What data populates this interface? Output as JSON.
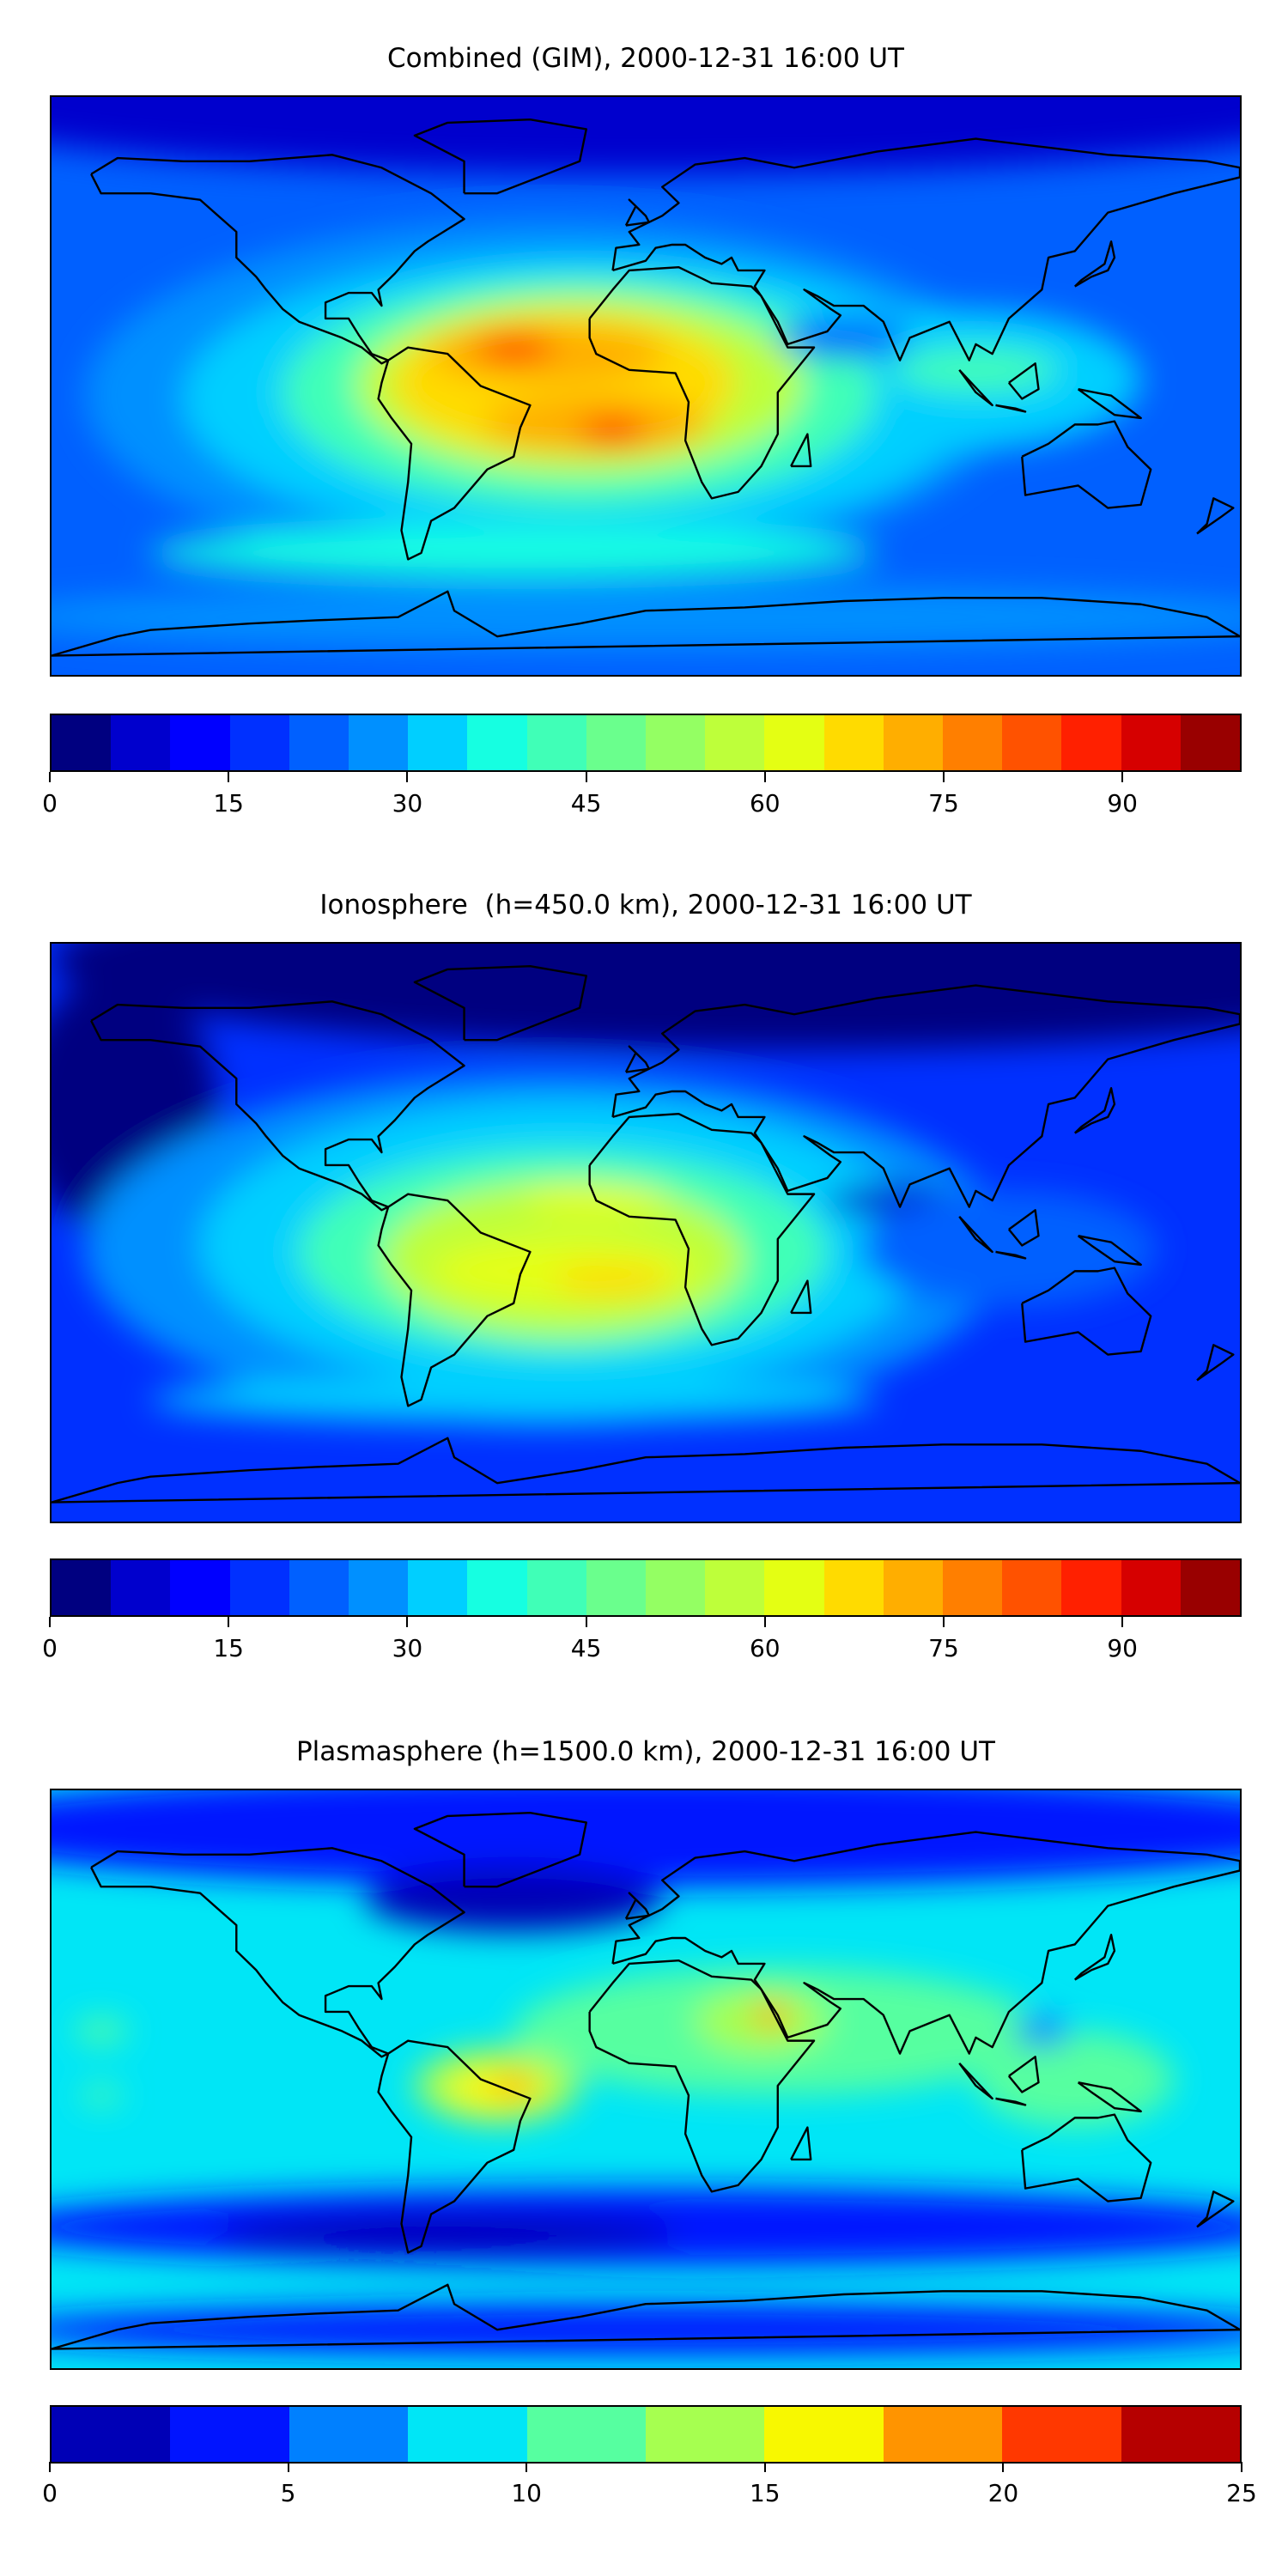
{
  "chart_data": [
    {
      "type": "heatmap",
      "subtype": "filled-contour-map",
      "title": "Combined (GIM), 2000-12-31 16:00 UT",
      "projection": "equirectangular",
      "lon_range": [
        -180,
        180
      ],
      "lat_range": [
        -90,
        90
      ],
      "colorbar": {
        "range": [
          0,
          100
        ],
        "level_step": 5,
        "ticks": [
          "0",
          "15",
          "30",
          "45",
          "60",
          "75",
          "90"
        ],
        "tick_values": [
          0,
          15,
          30,
          45,
          60,
          75,
          90
        ],
        "colors": [
          "#000080",
          "#0000cd",
          "#0000ff",
          "#0030ff",
          "#0060ff",
          "#0090ff",
          "#00cfff",
          "#16ffe1",
          "#40ffb7",
          "#6aff8d",
          "#94ff63",
          "#beff3a",
          "#e4ff13",
          "#ffdb00",
          "#ffae00",
          "#ff7f00",
          "#ff5200",
          "#ff2000",
          "#d60000",
          "#990000"
        ]
      },
      "field_base_value": 22,
      "field_approx": [
        {
          "value": 8,
          "lon": 0,
          "lat": 88,
          "rx": 220,
          "ry": 22
        },
        {
          "value": 27,
          "lon": -30,
          "lat": -3,
          "rx": 140,
          "ry": 55
        },
        {
          "value": 32,
          "lon": -20,
          "lat": -4,
          "rx": 120,
          "ry": 45
        },
        {
          "value": 32,
          "lon": 95,
          "lat": 2,
          "rx": 55,
          "ry": 22
        },
        {
          "value": 42,
          "lon": -20,
          "lat": -2,
          "rx": 90,
          "ry": 36
        },
        {
          "value": 42,
          "lon": 100,
          "lat": 5,
          "rx": 25,
          "ry": 7
        },
        {
          "value": 55,
          "lon": -20,
          "lat": 0,
          "rx": 68,
          "ry": 28
        },
        {
          "value": 65,
          "lon": -25,
          "lat": 1,
          "rx": 52,
          "ry": 22
        },
        {
          "value": 72,
          "lon": -30,
          "lat": 10,
          "rx": 36,
          "ry": 9
        },
        {
          "value": 72,
          "lon": -15,
          "lat": -12,
          "rx": 34,
          "ry": 9
        },
        {
          "value": 85,
          "lon": -40,
          "lat": 12,
          "rx": 12,
          "ry": 4
        },
        {
          "value": 85,
          "lon": -10,
          "lat": -14,
          "rx": 10,
          "ry": 4
        },
        {
          "value": 20,
          "lon": 60,
          "lat": 15,
          "rx": 20,
          "ry": 6
        },
        {
          "value": 38,
          "lon": -40,
          "lat": -52,
          "rx": 110,
          "ry": 8
        },
        {
          "value": 27,
          "lon": 0,
          "lat": -72,
          "rx": 200,
          "ry": 10
        }
      ]
    },
    {
      "type": "heatmap",
      "subtype": "filled-contour-map",
      "title": "Ionosphere  (h=450.0 km), 2000-12-31 16:00 UT",
      "projection": "equirectangular",
      "lon_range": [
        -180,
        180
      ],
      "lat_range": [
        -90,
        90
      ],
      "colorbar": {
        "range": [
          0,
          100
        ],
        "level_step": 5,
        "ticks": [
          "0",
          "15",
          "30",
          "45",
          "60",
          "75",
          "90"
        ],
        "tick_values": [
          0,
          15,
          30,
          45,
          60,
          75,
          90
        ],
        "colors": [
          "#000080",
          "#0000cd",
          "#0000ff",
          "#0030ff",
          "#0060ff",
          "#0090ff",
          "#00cfff",
          "#16ffe1",
          "#40ffb7",
          "#6aff8d",
          "#94ff63",
          "#beff3a",
          "#e4ff13",
          "#ffdb00",
          "#ffae00",
          "#ff7f00",
          "#ff5200",
          "#ff2000",
          "#d60000",
          "#990000"
        ]
      },
      "field_base_value": 17,
      "field_approx": [
        {
          "value": 3,
          "lon": 40,
          "lat": 85,
          "rx": 220,
          "ry": 28
        },
        {
          "value": 3,
          "lon": -160,
          "lat": 40,
          "rx": 30,
          "ry": 40
        },
        {
          "value": 27,
          "lon": -30,
          "lat": -5,
          "rx": 140,
          "ry": 55
        },
        {
          "value": 32,
          "lon": -25,
          "lat": -4,
          "rx": 110,
          "ry": 45
        },
        {
          "value": 42,
          "lon": -25,
          "lat": -6,
          "rx": 80,
          "ry": 32
        },
        {
          "value": 55,
          "lon": -25,
          "lat": -8,
          "rx": 55,
          "ry": 24
        },
        {
          "value": 62,
          "lon": -25,
          "lat": -12,
          "rx": 40,
          "ry": 10
        },
        {
          "value": 62,
          "lon": -15,
          "lat": 10,
          "rx": 22,
          "ry": 5
        },
        {
          "value": 67,
          "lon": -10,
          "lat": -15,
          "rx": 18,
          "ry": 5
        },
        {
          "value": 8,
          "lon": 75,
          "lat": 10,
          "rx": 20,
          "ry": 5
        },
        {
          "value": 22,
          "lon": 110,
          "lat": -5,
          "rx": 45,
          "ry": 18
        },
        {
          "value": 32,
          "lon": -40,
          "lat": -52,
          "rx": 110,
          "ry": 7
        }
      ]
    },
    {
      "type": "heatmap",
      "subtype": "filled-contour-map",
      "title": "Plasmasphere (h=1500.0 km), 2000-12-31 16:00 UT",
      "projection": "equirectangular",
      "lon_range": [
        -180,
        180
      ],
      "lat_range": [
        -90,
        90
      ],
      "colorbar": {
        "range": [
          0,
          25
        ],
        "level_step": 2.5,
        "ticks": [
          "0",
          "5",
          "10",
          "15",
          "20",
          "25"
        ],
        "tick_values": [
          0,
          5,
          10,
          15,
          20,
          25
        ],
        "colors": [
          "#0000b6",
          "#0014ff",
          "#0080ff",
          "#00e6f6",
          "#56ffa0",
          "#a6ff50",
          "#f8f800",
          "#ff9400",
          "#ff3800",
          "#b60000"
        ]
      },
      "field_base_value": 8,
      "field_approx": [
        {
          "value": 4,
          "lon": 0,
          "lat": 78,
          "rx": 220,
          "ry": 18
        },
        {
          "value": 1,
          "lon": -40,
          "lat": 56,
          "rx": 45,
          "ry": 10
        },
        {
          "value": 4,
          "lon": 0,
          "lat": -46,
          "rx": 200,
          "ry": 12
        },
        {
          "value": 1,
          "lon": -60,
          "lat": -48,
          "rx": 70,
          "ry": 6
        },
        {
          "value": 4,
          "lon": 0,
          "lat": -78,
          "rx": 200,
          "ry": 8
        },
        {
          "value": 11,
          "lon": 40,
          "lat": 15,
          "rx": 80,
          "ry": 20
        },
        {
          "value": 11,
          "lon": 130,
          "lat": 0,
          "rx": 30,
          "ry": 15
        },
        {
          "value": 11,
          "lon": -165,
          "lat": 15,
          "rx": 8,
          "ry": 4
        },
        {
          "value": 11,
          "lon": -165,
          "lat": -5,
          "rx": 6,
          "ry": 3
        },
        {
          "value": 14,
          "lon": -45,
          "lat": -2,
          "rx": 25,
          "ry": 12
        },
        {
          "value": 14,
          "lon": 35,
          "lat": 18,
          "rx": 20,
          "ry": 10
        },
        {
          "value": 16,
          "lon": -45,
          "lat": -3,
          "rx": 15,
          "ry": 7
        },
        {
          "value": 19,
          "lon": -40,
          "lat": -2,
          "rx": 6,
          "ry": 3
        },
        {
          "value": 19,
          "lon": 38,
          "lat": 20,
          "rx": 5,
          "ry": 4
        },
        {
          "value": 5,
          "lon": 120,
          "lat": 15,
          "rx": 8,
          "ry": 5
        }
      ]
    }
  ]
}
